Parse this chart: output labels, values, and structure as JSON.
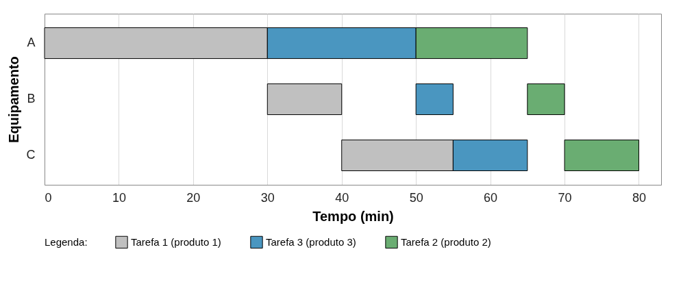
{
  "chart_data": {
    "type": "bar",
    "orientation": "horizontal",
    "xlabel": "Tempo (min)",
    "ylabel": "Equipamento",
    "legend_title": "Legenda:",
    "categories": [
      "A",
      "B",
      "C"
    ],
    "series": [
      {
        "name": "Tarefa 1 (produto 1)",
        "color": "#c0c0c0",
        "base": [
          0,
          30,
          40
        ],
        "values": [
          30,
          10,
          15
        ]
      },
      {
        "name": "Tarefa 3 (produto 3)",
        "color": "#4a96c0",
        "base": [
          30,
          50,
          55
        ],
        "values": [
          20,
          5,
          10
        ]
      },
      {
        "name": "Tarefa 2 (produto 2)",
        "color": "#6aad72",
        "base": [
          50,
          65,
          70
        ],
        "values": [
          15,
          5,
          10
        ]
      }
    ],
    "xlim": [
      0,
      83
    ],
    "xticks": [
      0,
      10,
      20,
      30,
      40,
      50,
      60,
      70,
      80
    ],
    "grid": "x",
    "legend": "bottom"
  }
}
